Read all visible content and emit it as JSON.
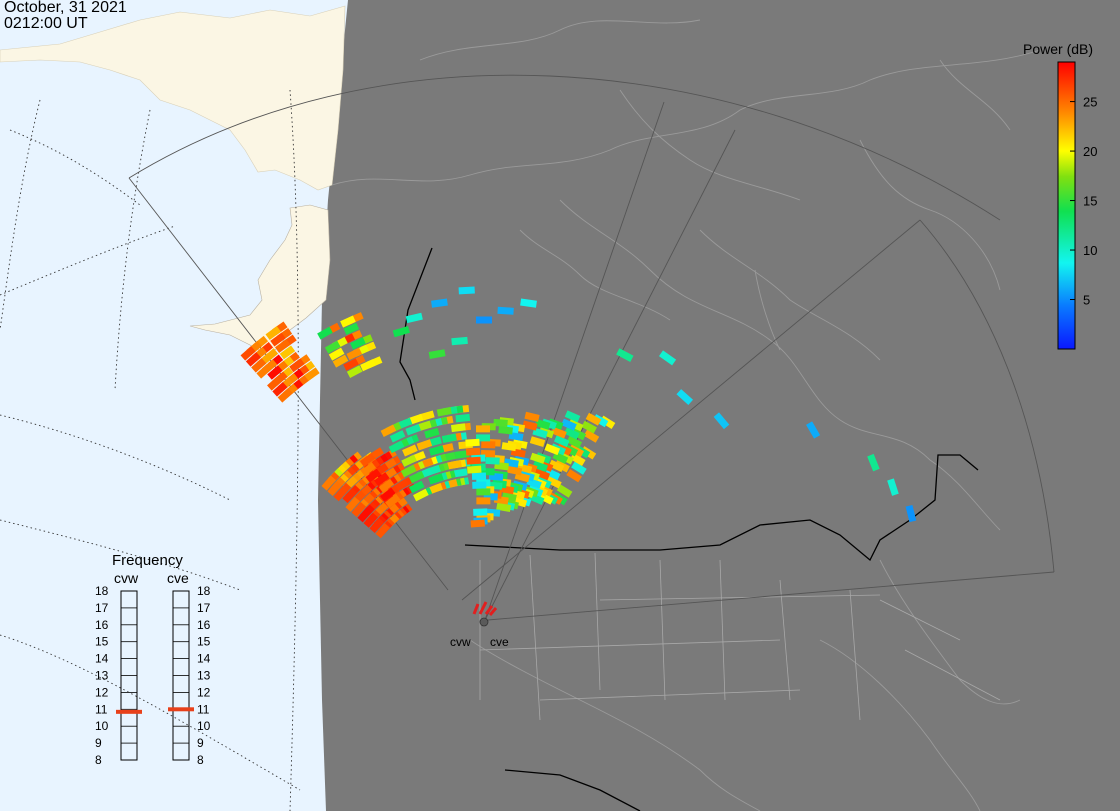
{
  "header": {
    "date": "October, 31 2021",
    "time": "0212:00 UT"
  },
  "colorbar": {
    "title": "Power (dB)",
    "ticks": [
      "25",
      "20",
      "15",
      "10",
      "5"
    ],
    "tick_values": [
      25,
      20,
      15,
      10,
      5
    ],
    "min": 0,
    "max": 29
  },
  "frequency_panel": {
    "title": "Frequency",
    "left_label": "cvw",
    "right_label": "cve",
    "scale": [
      "18",
      "17",
      "16",
      "15",
      "14",
      "13",
      "12",
      "11",
      "10",
      "9",
      "8"
    ],
    "cvw_frequency": 10.85,
    "cve_frequency": 11.0,
    "marker_color": "#e8401a"
  },
  "radars": {
    "west_label": "cvw",
    "east_label": "cve"
  },
  "colors": {
    "ocean": "#e8f4ff",
    "night_land": "#7a7a7a",
    "day_land": "#fbf6e4",
    "coastline": "#a8a8a8",
    "border": "#000000"
  }
}
